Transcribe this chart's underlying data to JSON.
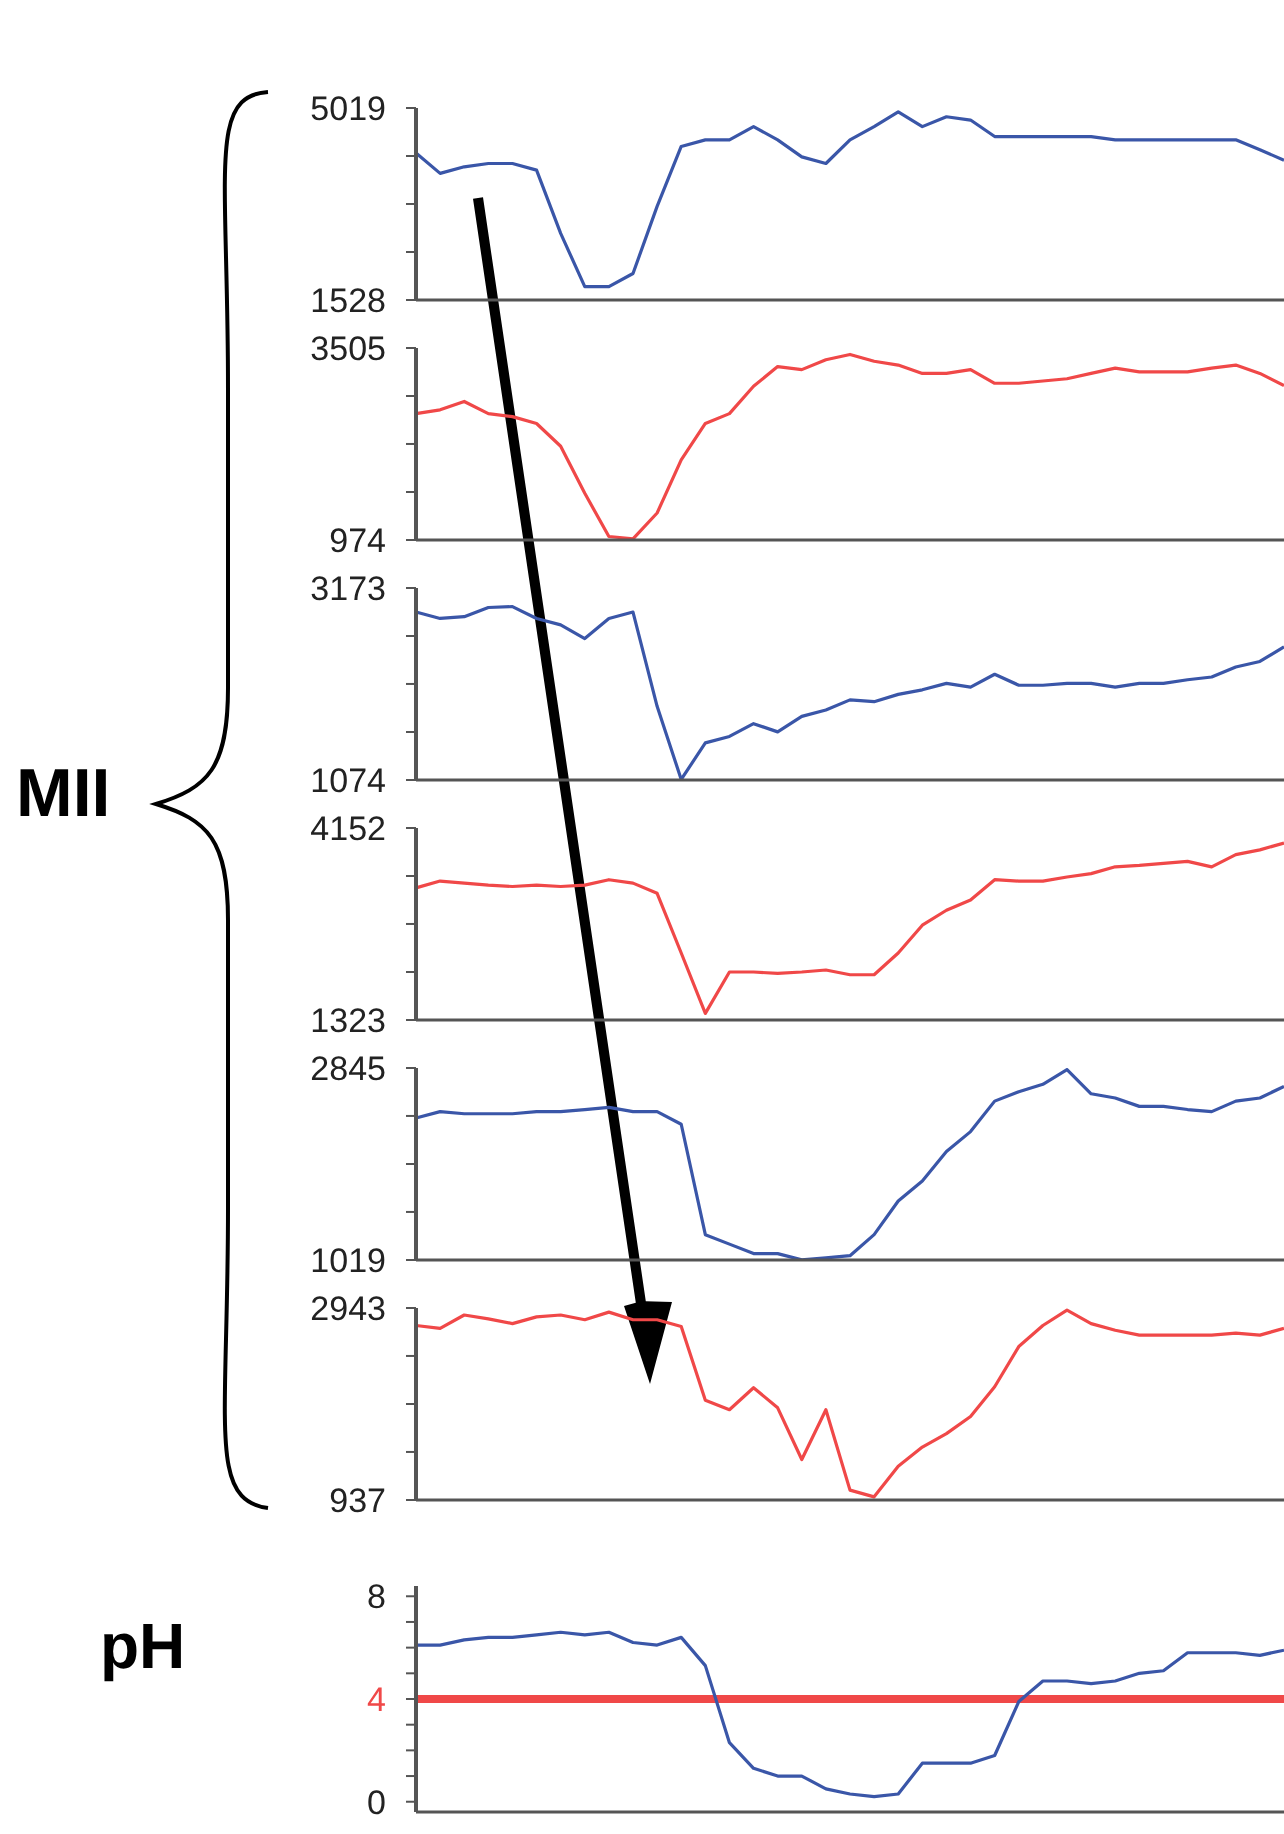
{
  "chart_data": [
    {
      "type": "line",
      "annotations": [
        "MII"
      ],
      "marker": "none",
      "categories": [
        null,
        null,
        null,
        null,
        null,
        null,
        null,
        null,
        null,
        null,
        null,
        null,
        null,
        null,
        null,
        null,
        null,
        null,
        null,
        null,
        null,
        null,
        null,
        null,
        null,
        null,
        null,
        null,
        null,
        null,
        null,
        null,
        null,
        null,
        null,
        null,
        null
      ],
      "ylim": [
        1528,
        5019
      ],
      "yticks": [
        1528,
        {
          "value": 2401,
          "label": null
        },
        {
          "value": 3274,
          "label": null
        },
        {
          "value": 4146,
          "label": null
        },
        5019
      ],
      "tick_labels": "y",
      "series": [
        {
          "color": "#3a56a8",
          "values": [
            4200,
            3830,
            3950,
            4010,
            4010,
            3890,
            2740,
            1770,
            1770,
            2010,
            3230,
            4320,
            4440,
            4440,
            4680,
            4440,
            4130,
            4010,
            4440,
            4680,
            4950,
            4680,
            4860,
            4800,
            4500,
            4500,
            4500,
            4500,
            4500,
            4440,
            4440,
            4440,
            4440,
            4440,
            4440,
            4260,
            4070
          ]
        }
      ]
    },
    {
      "type": "line",
      "marker": "none",
      "categories": [
        null,
        null,
        null,
        null,
        null,
        null,
        null,
        null,
        null,
        null,
        null,
        null,
        null,
        null,
        null,
        null,
        null,
        null,
        null,
        null,
        null,
        null,
        null,
        null,
        null,
        null,
        null,
        null,
        null,
        null,
        null,
        null,
        null,
        null,
        null,
        null,
        null
      ],
      "ylim": [
        974,
        3505
      ],
      "yticks": [
        974,
        {
          "value": 1607,
          "label": null
        },
        {
          "value": 2240,
          "label": null
        },
        {
          "value": 2872,
          "label": null
        },
        3505
      ],
      "tick_labels": "y",
      "series": [
        {
          "color": "#f04848",
          "values": [
            2640,
            2690,
            2800,
            2640,
            2600,
            2510,
            2210,
            1590,
            1020,
            990,
            1330,
            2030,
            2510,
            2640,
            3000,
            3260,
            3220,
            3350,
            3420,
            3330,
            3280,
            3170,
            3170,
            3220,
            3040,
            3040,
            3070,
            3100,
            3170,
            3240,
            3190,
            3190,
            3190,
            3240,
            3280,
            3170,
            3010
          ]
        }
      ]
    },
    {
      "type": "line",
      "marker": "none",
      "categories": [
        null,
        null,
        null,
        null,
        null,
        null,
        null,
        null,
        null,
        null,
        null,
        null,
        null,
        null,
        null,
        null,
        null,
        null,
        null,
        null,
        null,
        null,
        null,
        null,
        null,
        null,
        null,
        null,
        null,
        null,
        null,
        null,
        null,
        null,
        null,
        null,
        null
      ],
      "ylim": [
        1074,
        3173
      ],
      "yticks": [
        1074,
        {
          "value": 1599,
          "label": null
        },
        {
          "value": 2124,
          "label": null
        },
        {
          "value": 2648,
          "label": null
        },
        3173
      ],
      "tick_labels": "y",
      "series": [
        {
          "color": "#3a56a8",
          "values": [
            2910,
            2840,
            2860,
            2960,
            2970,
            2840,
            2770,
            2620,
            2840,
            2910,
            1880,
            1080,
            1480,
            1550,
            1690,
            1600,
            1770,
            1840,
            1950,
            1930,
            2010,
            2060,
            2130,
            2090,
            2230,
            2110,
            2110,
            2130,
            2130,
            2090,
            2130,
            2130,
            2170,
            2200,
            2310,
            2370,
            2530
          ]
        }
      ]
    },
    {
      "type": "line",
      "marker": "none",
      "categories": [
        null,
        null,
        null,
        null,
        null,
        null,
        null,
        null,
        null,
        null,
        null,
        null,
        null,
        null,
        null,
        null,
        null,
        null,
        null,
        null,
        null,
        null,
        null,
        null,
        null,
        null,
        null,
        null,
        null,
        null,
        null,
        null,
        null,
        null,
        null,
        null,
        null
      ],
      "ylim": [
        1323,
        4152
      ],
      "yticks": [
        1323,
        {
          "value": 2030,
          "label": null
        },
        {
          "value": 2738,
          "label": null
        },
        {
          "value": 3445,
          "label": null
        },
        4152
      ],
      "tick_labels": "y",
      "series": [
        {
          "color": "#f04848",
          "values": [
            3270,
            3370,
            3340,
            3310,
            3290,
            3310,
            3290,
            3310,
            3390,
            3340,
            3190,
            2310,
            1420,
            2030,
            2030,
            2010,
            2030,
            2060,
            1990,
            1990,
            2310,
            2720,
            2940,
            3090,
            3390,
            3370,
            3370,
            3430,
            3480,
            3580,
            3600,
            3630,
            3660,
            3580,
            3760,
            3830,
            3930
          ]
        }
      ]
    },
    {
      "type": "line",
      "marker": "none",
      "categories": [
        null,
        null,
        null,
        null,
        null,
        null,
        null,
        null,
        null,
        null,
        null,
        null,
        null,
        null,
        null,
        null,
        null,
        null,
        null,
        null,
        null,
        null,
        null,
        null,
        null,
        null,
        null,
        null,
        null,
        null,
        null,
        null,
        null,
        null,
        null,
        null,
        null
      ],
      "ylim": [
        1019,
        2845
      ],
      "yticks": [
        1019,
        {
          "value": 1476,
          "label": null
        },
        {
          "value": 1932,
          "label": null
        },
        {
          "value": 2389,
          "label": null
        },
        2845
      ],
      "tick_labels": "y",
      "series": [
        {
          "color": "#3a56a8",
          "values": [
            2370,
            2430,
            2410,
            2410,
            2410,
            2430,
            2430,
            2450,
            2470,
            2430,
            2430,
            2310,
            1260,
            1170,
            1080,
            1080,
            1020,
            1040,
            1060,
            1260,
            1580,
            1770,
            2050,
            2240,
            2530,
            2620,
            2690,
            2830,
            2600,
            2560,
            2480,
            2480,
            2450,
            2430,
            2530,
            2560,
            2670
          ]
        }
      ]
    },
    {
      "type": "line",
      "marker": "none",
      "categories": [
        null,
        null,
        null,
        null,
        null,
        null,
        null,
        null,
        null,
        null,
        null,
        null,
        null,
        null,
        null,
        null,
        null,
        null,
        null,
        null,
        null,
        null,
        null,
        null,
        null,
        null,
        null,
        null,
        null,
        null,
        null,
        null,
        null,
        null,
        null,
        null,
        null
      ],
      "ylim": [
        937,
        2943
      ],
      "yticks": [
        937,
        {
          "value": 1439,
          "label": null
        },
        {
          "value": 1940,
          "label": null
        },
        {
          "value": 2442,
          "label": null
        },
        2943
      ],
      "tick_labels": "y",
      "series": [
        {
          "color": "#f04848",
          "values": [
            2760,
            2730,
            2870,
            2830,
            2780,
            2850,
            2870,
            2820,
            2900,
            2820,
            2820,
            2750,
            1980,
            1880,
            2110,
            1900,
            1360,
            1880,
            1040,
            970,
            1290,
            1490,
            1630,
            1810,
            2120,
            2540,
            2760,
            2920,
            2780,
            2710,
            2660,
            2660,
            2660,
            2660,
            2680,
            2660,
            2730
          ]
        }
      ]
    },
    {
      "type": "line",
      "ylabel": "pH",
      "marker": "none",
      "categories": [
        null,
        null,
        null,
        null,
        null,
        null,
        null,
        null,
        null,
        null,
        null,
        null,
        null,
        null,
        null,
        null,
        null,
        null,
        null,
        null,
        null,
        null,
        null,
        null,
        null,
        null,
        null,
        null,
        null,
        null,
        null,
        null,
        null,
        null,
        null,
        null,
        null
      ],
      "ylim": [
        -0.4,
        8.4
      ],
      "yticks": [
        0,
        {
          "value": 1,
          "label": null
        },
        {
          "value": 2,
          "label": null
        },
        {
          "value": 3,
          "label": null
        },
        4,
        {
          "value": 5,
          "label": null
        },
        {
          "value": 6,
          "label": null
        },
        {
          "value": 7,
          "label": null
        },
        8
      ],
      "tick_labels": "y",
      "ref_lines": [
        {
          "axis": "y",
          "value": 4,
          "color": "#f04848"
        }
      ],
      "series": [
        {
          "color": "#3a56a8",
          "values": [
            6.1,
            6.1,
            6.3,
            6.4,
            6.4,
            6.5,
            6.6,
            6.5,
            6.6,
            6.2,
            6.1,
            6.4,
            5.3,
            2.3,
            1.3,
            1.0,
            1.0,
            0.5,
            0.3,
            0.2,
            0.3,
            1.5,
            1.5,
            1.5,
            1.8,
            3.9,
            4.7,
            4.7,
            4.6,
            4.7,
            5.0,
            5.1,
            5.8,
            5.8,
            5.8,
            5.7,
            5.9
          ]
        }
      ]
    }
  ]
}
